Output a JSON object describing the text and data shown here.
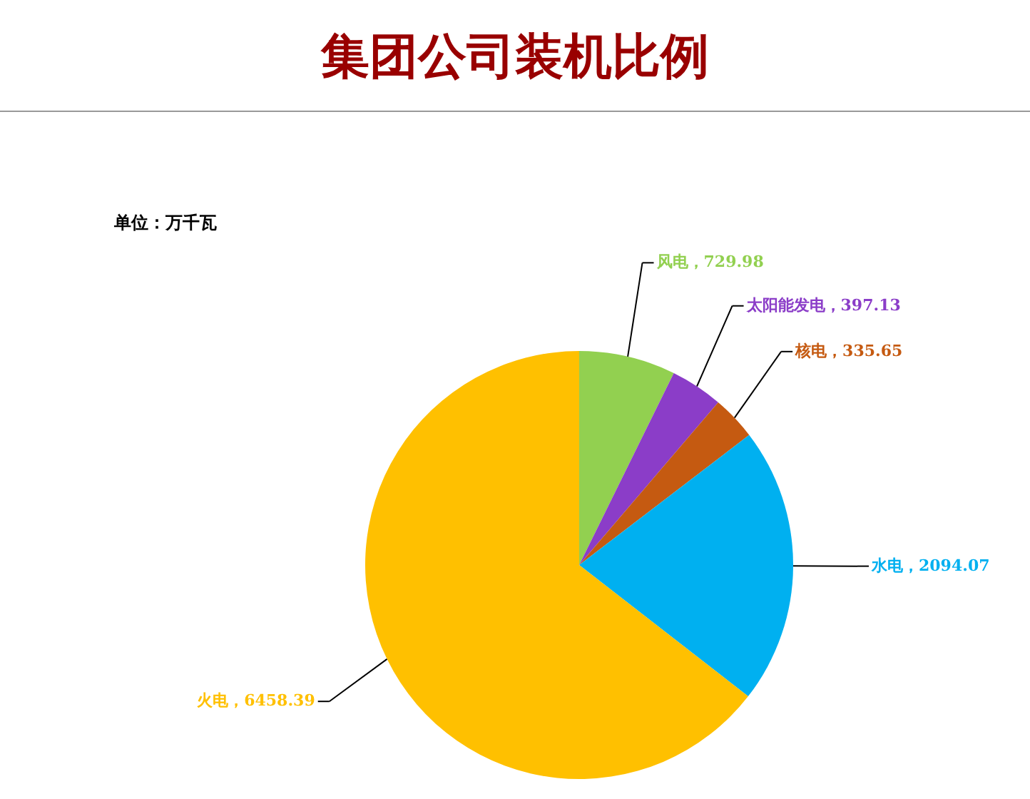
{
  "chart_data": {
    "type": "pie",
    "title": "集团公司装机比例",
    "categories": [
      "风电",
      "太阳能发电",
      "核电",
      "水电",
      "火电"
    ],
    "values": [
      729.98,
      397.13,
      335.65,
      2094.07,
      6458.39
    ],
    "colors": [
      "#92d050",
      "#8b3dc8",
      "#c55a11",
      "#00b0f0",
      "#ffc000"
    ],
    "value_labels": [
      "，729.98",
      "，397.13",
      "，335.65",
      "，2094.07",
      "，6458.39"
    ],
    "annotations": [
      "单位：万千瓦"
    ]
  }
}
